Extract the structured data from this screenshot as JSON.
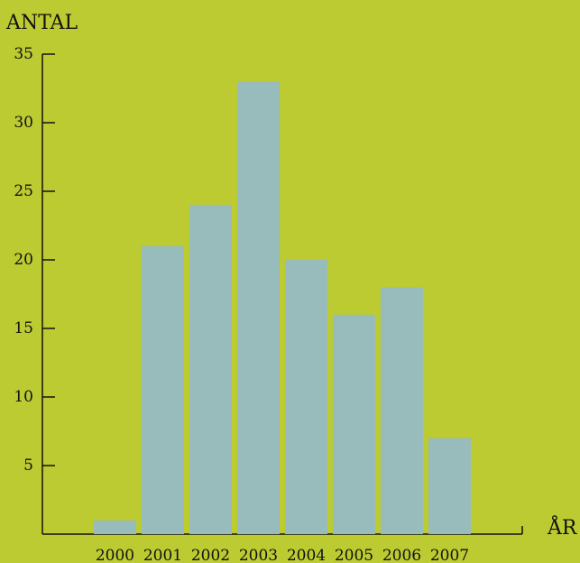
{
  "chart_data": {
    "type": "bar",
    "categories": [
      "2000",
      "2001",
      "2002",
      "2003",
      "2004",
      "2005",
      "2006",
      "2007"
    ],
    "values": [
      1,
      21,
      24,
      33,
      20,
      16,
      18,
      7
    ],
    "ylabel": "ANTAL",
    "xlabel": "ÅR",
    "ylim": [
      0,
      35
    ],
    "yticks": [
      5,
      10,
      15,
      20,
      25,
      30,
      35
    ],
    "grid": false,
    "colors": {
      "background": "#bccb31",
      "bar": "#98bbbb",
      "axis": "#111111"
    }
  }
}
